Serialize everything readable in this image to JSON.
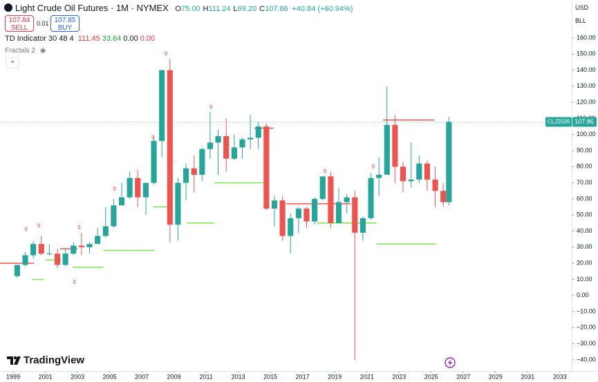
{
  "chart_data": {
    "type": "candlestick",
    "title": "Light Crude Oil Futures · 1M · NYMEX",
    "ohlc_legend": [
      {
        "label": "O",
        "value": "75.00"
      },
      {
        "label": "H",
        "value": "111.24"
      },
      {
        "label": "L",
        "value": "69.20"
      },
      {
        "label": "C",
        "value": "107.86"
      }
    ],
    "change": "+40.84 (+60.94%)",
    "sell": {
      "price": "107.84",
      "label": "SELL"
    },
    "spread": "0.01",
    "buy": {
      "price": "107.85",
      "label": "BUY"
    },
    "indicators": [
      {
        "name": "TD Indicator 30 48 4",
        "values": [
          {
            "text": "111.45",
            "color": "#f23645"
          },
          {
            "text": "33.64",
            "color": "#22ab3a"
          },
          {
            "text": "0.00",
            "color": "#131722"
          },
          {
            "text": "0.00",
            "color": "#f23645"
          }
        ]
      },
      {
        "name": "Fractals 2"
      }
    ],
    "currency": "USD",
    "unit": "BLL",
    "symbol": "CLJ2026",
    "last_price": 107.86,
    "brand": "TradingView",
    "up_color": "#26a69a",
    "down_color": "#ef5350",
    "x": [
      1999.25,
      1999.75,
      2000.25,
      2000.75,
      2001.25,
      2001.75,
      2002.25,
      2002.75,
      2003.25,
      2003.75,
      2004.25,
      2004.75,
      2005.25,
      2005.75,
      2006.25,
      2006.75,
      2007.25,
      2007.75,
      2008.25,
      2008.75,
      2009.25,
      2009.75,
      2010.25,
      2010.75,
      2011.25,
      2011.75,
      2012.25,
      2012.75,
      2013.25,
      2013.75,
      2014.25,
      2014.75,
      2015.25,
      2015.75,
      2016.25,
      2016.75,
      2017.25,
      2017.75,
      2018.25,
      2018.75,
      2019.25,
      2019.75,
      2020.25,
      2020.75,
      2021.25,
      2021.75,
      2022.25,
      2022.75,
      2023.25,
      2023.75,
      2024.25,
      2024.75,
      2025.25,
      2025.75,
      2026.1
    ],
    "open": [
      12,
      19,
      25,
      32,
      26,
      26,
      19,
      26,
      31,
      30,
      32,
      37,
      43,
      56,
      61,
      73,
      61,
      70,
      96,
      140,
      44,
      70,
      79,
      75,
      91,
      95,
      99,
      85,
      92,
      97,
      98,
      105,
      54,
      59,
      37,
      48,
      54,
      46,
      60,
      74,
      45,
      58,
      61,
      39,
      48,
      73,
      75,
      106,
      80,
      71,
      72,
      82,
      72,
      65,
      58
    ],
    "high": [
      19,
      27,
      34,
      37,
      32,
      29,
      29,
      33,
      39,
      33,
      42,
      55,
      60,
      70,
      77,
      78,
      70,
      99,
      140,
      147,
      73,
      82,
      87,
      92,
      114,
      103,
      110,
      100,
      98,
      112,
      108,
      107,
      62,
      62,
      51,
      55,
      55,
      61,
      74,
      77,
      67,
      63,
      65,
      49,
      76,
      86,
      130,
      112,
      83,
      95,
      87,
      84,
      80,
      70,
      111
    ],
    "low": [
      11,
      18,
      23,
      25,
      25,
      17,
      18,
      25,
      25,
      26,
      32,
      36,
      42,
      56,
      60,
      55,
      50,
      69,
      86,
      33,
      34,
      59,
      64,
      71,
      85,
      75,
      77,
      84,
      85,
      91,
      91,
      53,
      43,
      34,
      26,
      39,
      42,
      44,
      59,
      42,
      45,
      51,
      -40,
      34,
      47,
      62,
      75,
      70,
      64,
      67,
      70,
      65,
      55,
      55,
      56
    ],
    "close": [
      19,
      25,
      32,
      26,
      26,
      19,
      26,
      31,
      30,
      32,
      37,
      43,
      56,
      61,
      73,
      61,
      70,
      96,
      140,
      44,
      70,
      79,
      75,
      91,
      95,
      99,
      85,
      92,
      97,
      98,
      105,
      54,
      59,
      37,
      48,
      54,
      46,
      60,
      74,
      45,
      58,
      61,
      39,
      48,
      73,
      75,
      106,
      80,
      71,
      72,
      82,
      72,
      65,
      58,
      107.86
    ],
    "xlim": [
      1998.18,
      2033.74
    ],
    "ylim": [
      -46.9,
      183.6
    ],
    "xticks": [
      1999,
      2001,
      2003,
      2005,
      2007,
      2009,
      2011,
      2013,
      2015,
      2017,
      2019,
      2021,
      2023,
      2025,
      2027,
      2029,
      2031,
      2033
    ],
    "yticks": [
      {
        "value": 160,
        "label": "160.00"
      },
      {
        "value": 150,
        "label": "150.00"
      },
      {
        "value": 140,
        "label": "140.00"
      },
      {
        "value": 130,
        "label": "130.00"
      },
      {
        "value": 120,
        "label": "120.00"
      },
      {
        "value": 110,
        "label": "110.00"
      },
      {
        "value": 100,
        "label": "100.00"
      },
      {
        "value": 90,
        "label": "90.00"
      },
      {
        "value": 80,
        "label": "80.00"
      },
      {
        "value": 70,
        "label": "70.00"
      },
      {
        "value": 60,
        "label": "60.00"
      },
      {
        "value": 50,
        "label": "50.00"
      },
      {
        "value": 40,
        "label": "40.00"
      },
      {
        "value": 30,
        "label": "30.00"
      },
      {
        "value": 20,
        "label": "20.00"
      },
      {
        "value": 10,
        "label": "10.00"
      },
      {
        "value": 0,
        "label": "0.00"
      },
      {
        "value": -10,
        "label": "−10.00"
      },
      {
        "value": -20,
        "label": "−20.00"
      },
      {
        "value": -30,
        "label": "−30.00"
      },
      {
        "value": -40,
        "label": "−40.00"
      }
    ],
    "levels": [
      {
        "x": [
          1998.18,
          2000.3
        ],
        "value": 20,
        "color": "#ef5350"
      },
      {
        "x": [
          2001.9,
          2003.0
        ],
        "value": 29,
        "color": "#ef5350"
      },
      {
        "x": [
          2014.0,
          2015.2
        ],
        "value": 104,
        "color": "#ef5350"
      },
      {
        "x": [
          2016.0,
          2020.0
        ],
        "value": 57,
        "color": "#ef5350"
      },
      {
        "x": [
          2022.0,
          2025.2
        ],
        "value": 109,
        "color": "#ef5350"
      },
      {
        "x": [
          2000.2,
          2000.9
        ],
        "value": 10,
        "color": "#76e84a"
      },
      {
        "x": [
          2001.0,
          2002.0
        ],
        "value": 22,
        "color": "#76e84a"
      },
      {
        "x": [
          2002.7,
          2004.6
        ],
        "value": 17.5,
        "color": "#76e84a"
      },
      {
        "x": [
          2004.6,
          2007.8
        ],
        "value": 28,
        "color": "#76e84a"
      },
      {
        "x": [
          2007.7,
          2008.6
        ],
        "value": 55,
        "color": "#76e84a"
      },
      {
        "x": [
          2008.6,
          2009.0
        ],
        "value": 83,
        "color": "#76e84a"
      },
      {
        "x": [
          2009.8,
          2011.5
        ],
        "value": 45,
        "color": "#76e84a"
      },
      {
        "x": [
          2011.5,
          2014.9
        ],
        "value": 70,
        "color": "#76e84a"
      },
      {
        "x": [
          2017.9,
          2021.6
        ],
        "value": 45,
        "color": "#76e84a"
      },
      {
        "x": [
          2021.6,
          2025.3
        ],
        "value": 32,
        "color": "#76e84a"
      }
    ],
    "td_labels": [
      {
        "x": 1999.8,
        "value": 41,
        "label": "9"
      },
      {
        "x": 2000.6,
        "value": 43,
        "label": "9"
      },
      {
        "x": 2002.8,
        "value": 8,
        "label": "9"
      },
      {
        "x": 2003.1,
        "value": 42,
        "label": "9"
      },
      {
        "x": 2005.3,
        "value": 66,
        "label": "9"
      },
      {
        "x": 2007.7,
        "value": 98,
        "label": "9"
      },
      {
        "x": 2008.5,
        "value": 150,
        "label": "9"
      },
      {
        "x": 2011.3,
        "value": 117,
        "label": "9"
      },
      {
        "x": 2018.4,
        "value": 77,
        "label": "9"
      },
      {
        "x": 2021.4,
        "value": 80,
        "label": "9"
      }
    ]
  }
}
